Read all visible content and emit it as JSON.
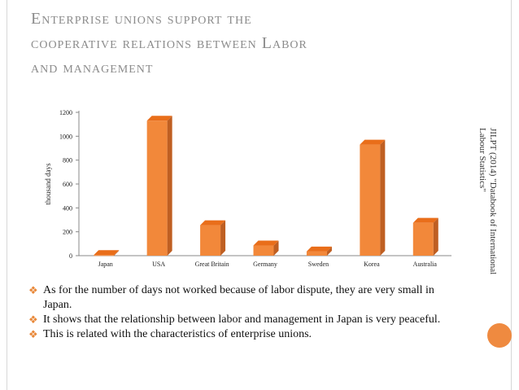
{
  "title": {
    "lines": [
      "Enterprise unions support the",
      "cooperative relations between Labor",
      "and management"
    ]
  },
  "source": {
    "lines": [
      "JILPT (2014) \"Databook of International",
      "Labour Statistics\""
    ]
  },
  "bullets": [
    "As for the number of days not worked because of labor dispute, they are very small in Japan.",
    "It shows that the relationship between labor and management in Japan is very peaceful.",
    "This is related with the characteristics of enterprise unions."
  ],
  "colors": {
    "bar": "#f2883a",
    "bar_side": "#bf5f22",
    "accent": "#e88737",
    "title": "#8b8b8b"
  },
  "chart_data": {
    "type": "bar",
    "categories": [
      "Japan",
      "USA",
      "Great Britain",
      "Germany",
      "Sweden",
      "Korea",
      "Australia"
    ],
    "values": [
      5,
      1130,
      255,
      85,
      35,
      930,
      275
    ],
    "ylabel": "thousand days",
    "ylim": [
      0,
      1200
    ],
    "yticks": [
      0,
      200,
      400,
      600,
      800,
      1000,
      1200
    ],
    "grid": false,
    "legend": "none"
  }
}
